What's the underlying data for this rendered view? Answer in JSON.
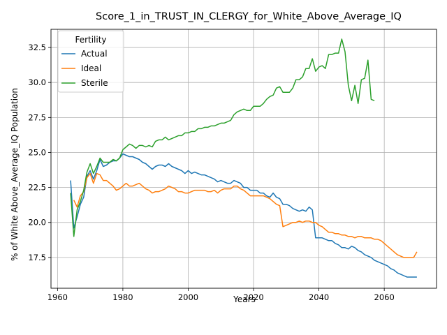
{
  "chart_data": {
    "type": "line",
    "title": "Score_1_in_TRUST_IN_CLERGY_for_White_Above_Average_IQ",
    "xlabel": "Years",
    "ylabel": "% of White Above_Average_IQ Population",
    "xlim": [
      1958,
      2076
    ],
    "ylim": [
      15.3,
      33.8
    ],
    "xticks": [
      1960,
      1980,
      2000,
      2020,
      2040,
      2060
    ],
    "yticks": [
      17.5,
      20.0,
      22.5,
      25.0,
      27.5,
      30.0,
      32.5
    ],
    "ytick_labels": [
      "17.5",
      "20.0",
      "22.5",
      "25.0",
      "27.5",
      "30.0",
      "32.5"
    ],
    "grid": true,
    "legend": {
      "title": "Fertility",
      "placement": "top-left"
    },
    "series": [
      {
        "name": "Actual",
        "color": "#1f77b4",
        "x": [
          1964,
          1965,
          1966,
          1967,
          1968,
          1969,
          1970,
          1971,
          1972,
          1973,
          1974,
          1975,
          1976,
          1977,
          1978,
          1979,
          1980,
          1981,
          1982,
          1983,
          1984,
          1985,
          1986,
          1987,
          1988,
          1989,
          1990,
          1991,
          1992,
          1993,
          1994,
          1995,
          1996,
          1997,
          1998,
          1999,
          2000,
          2001,
          2002,
          2003,
          2004,
          2005,
          2006,
          2007,
          2008,
          2009,
          2010,
          2011,
          2012,
          2013,
          2014,
          2015,
          2016,
          2017,
          2018,
          2019,
          2020,
          2021,
          2022,
          2023,
          2024,
          2025,
          2026,
          2027,
          2028,
          2029,
          2030,
          2031,
          2032,
          2033,
          2034,
          2035,
          2036,
          2037,
          2038,
          2039,
          2040,
          2041,
          2042,
          2043,
          2044,
          2045,
          2046,
          2047,
          2048,
          2049,
          2050,
          2051,
          2052,
          2053,
          2054,
          2055,
          2056,
          2057,
          2058,
          2059,
          2060,
          2061,
          2062,
          2063,
          2064,
          2065,
          2066,
          2067,
          2068,
          2069,
          2070
        ],
        "values": [
          23.0,
          19.6,
          20.4,
          21.3,
          21.8,
          23.3,
          23.7,
          23.1,
          23.7,
          24.5,
          24.0,
          24.1,
          24.3,
          24.4,
          24.4,
          24.6,
          24.9,
          24.8,
          24.7,
          24.7,
          24.6,
          24.5,
          24.3,
          24.2,
          24.0,
          23.8,
          24.0,
          24.1,
          24.1,
          24.0,
          24.2,
          24.0,
          23.9,
          23.8,
          23.7,
          23.5,
          23.7,
          23.5,
          23.6,
          23.5,
          23.4,
          23.4,
          23.3,
          23.2,
          23.1,
          22.9,
          23.0,
          22.9,
          22.8,
          22.8,
          23.0,
          22.9,
          22.8,
          22.5,
          22.5,
          22.3,
          22.3,
          22.3,
          22.1,
          22.1,
          21.9,
          21.8,
          22.1,
          21.8,
          21.7,
          21.3,
          21.3,
          21.2,
          21.0,
          20.9,
          20.8,
          20.9,
          20.8,
          21.1,
          20.9,
          18.9,
          18.9,
          18.9,
          18.8,
          18.7,
          18.7,
          18.5,
          18.4,
          18.2,
          18.2,
          18.1,
          18.3,
          18.2,
          18.0,
          17.9,
          17.7,
          17.6,
          17.5,
          17.3,
          17.2,
          17.1,
          17.0,
          16.9,
          16.7,
          16.6,
          16.4,
          16.3,
          16.2,
          16.1,
          16.1,
          16.1,
          16.1
        ]
      },
      {
        "name": "Ideal",
        "color": "#ff7f0e",
        "x": [
          1965,
          1966,
          1967,
          1968,
          1969,
          1970,
          1971,
          1972,
          1973,
          1974,
          1975,
          1976,
          1977,
          1978,
          1979,
          1980,
          1981,
          1982,
          1983,
          1984,
          1985,
          1986,
          1987,
          1988,
          1989,
          1990,
          1991,
          1992,
          1993,
          1994,
          1995,
          1996,
          1997,
          1998,
          1999,
          2000,
          2001,
          2002,
          2003,
          2004,
          2005,
          2006,
          2007,
          2008,
          2009,
          2010,
          2011,
          2012,
          2013,
          2014,
          2015,
          2016,
          2017,
          2018,
          2019,
          2020,
          2021,
          2022,
          2023,
          2024,
          2025,
          2026,
          2027,
          2028,
          2029,
          2030,
          2031,
          2032,
          2033,
          2034,
          2035,
          2036,
          2037,
          2038,
          2039,
          2040,
          2041,
          2042,
          2043,
          2044,
          2045,
          2046,
          2047,
          2048,
          2049,
          2050,
          2051,
          2052,
          2053,
          2054,
          2055,
          2056,
          2057,
          2058,
          2059,
          2060,
          2061,
          2062,
          2063,
          2064,
          2065,
          2066,
          2067,
          2068,
          2069,
          2070
        ],
        "values": [
          21.6,
          21.1,
          21.9,
          22.2,
          23.2,
          23.5,
          22.8,
          23.5,
          23.4,
          23.0,
          23.0,
          22.8,
          22.6,
          22.3,
          22.4,
          22.6,
          22.8,
          22.6,
          22.6,
          22.7,
          22.8,
          22.6,
          22.4,
          22.3,
          22.1,
          22.2,
          22.2,
          22.3,
          22.4,
          22.6,
          22.5,
          22.4,
          22.2,
          22.2,
          22.1,
          22.1,
          22.2,
          22.3,
          22.3,
          22.3,
          22.3,
          22.2,
          22.2,
          22.3,
          22.1,
          22.3,
          22.4,
          22.4,
          22.4,
          22.6,
          22.6,
          22.4,
          22.3,
          22.1,
          21.9,
          21.9,
          21.9,
          21.9,
          21.9,
          21.8,
          21.7,
          21.5,
          21.3,
          21.2,
          19.7,
          19.8,
          19.9,
          20.0,
          20.0,
          20.1,
          20.0,
          20.1,
          20.1,
          20.0,
          20.0,
          19.8,
          19.7,
          19.5,
          19.3,
          19.3,
          19.2,
          19.2,
          19.1,
          19.1,
          19.0,
          19.0,
          18.9,
          19.0,
          19.0,
          18.9,
          18.9,
          18.9,
          18.8,
          18.8,
          18.7,
          18.5,
          18.3,
          18.1,
          17.9,
          17.7,
          17.6,
          17.5,
          17.5,
          17.5,
          17.5,
          17.9
        ]
      },
      {
        "name": "Sterile",
        "color": "#2ca02c",
        "x": [
          1964,
          1965,
          1966,
          1967,
          1968,
          1969,
          1970,
          1971,
          1972,
          1973,
          1974,
          1975,
          1976,
          1977,
          1978,
          1979,
          1980,
          1981,
          1982,
          1983,
          1984,
          1985,
          1986,
          1987,
          1988,
          1989,
          1990,
          1991,
          1992,
          1993,
          1994,
          1995,
          1996,
          1997,
          1998,
          1999,
          2000,
          2001,
          2002,
          2003,
          2004,
          2005,
          2006,
          2007,
          2008,
          2009,
          2010,
          2011,
          2012,
          2013,
          2014,
          2015,
          2016,
          2017,
          2018,
          2019,
          2020,
          2021,
          2022,
          2023,
          2024,
          2025,
          2026,
          2027,
          2028,
          2029,
          2030,
          2031,
          2032,
          2033,
          2034,
          2035,
          2036,
          2037,
          2038,
          2039,
          2040,
          2041,
          2042,
          2043,
          2044,
          2045,
          2046,
          2047,
          2048,
          2049,
          2050,
          2051,
          2052,
          2053,
          2054,
          2055,
          2056,
          2057
        ],
        "values": [
          22.1,
          19.0,
          20.9,
          21.5,
          22.3,
          23.6,
          24.2,
          23.5,
          24.0,
          24.6,
          24.3,
          24.3,
          24.3,
          24.5,
          24.4,
          24.6,
          25.2,
          25.4,
          25.6,
          25.5,
          25.3,
          25.5,
          25.5,
          25.4,
          25.5,
          25.4,
          25.8,
          25.9,
          25.9,
          26.1,
          25.9,
          26.0,
          26.1,
          26.2,
          26.2,
          26.4,
          26.4,
          26.5,
          26.5,
          26.7,
          26.7,
          26.8,
          26.8,
          26.9,
          26.9,
          27.0,
          27.1,
          27.1,
          27.2,
          27.3,
          27.7,
          27.9,
          28.0,
          28.1,
          28.0,
          28.0,
          28.3,
          28.3,
          28.3,
          28.5,
          28.8,
          29.0,
          29.1,
          29.6,
          29.7,
          29.3,
          29.3,
          29.3,
          29.6,
          30.2,
          30.2,
          30.4,
          31.0,
          31.0,
          31.7,
          30.8,
          31.1,
          31.2,
          31.0,
          32.0,
          32.0,
          32.1,
          32.1,
          33.1,
          32.2,
          29.8,
          28.7,
          29.8,
          28.5,
          30.2,
          30.3,
          31.6,
          28.8,
          28.7
        ]
      }
    ]
  }
}
